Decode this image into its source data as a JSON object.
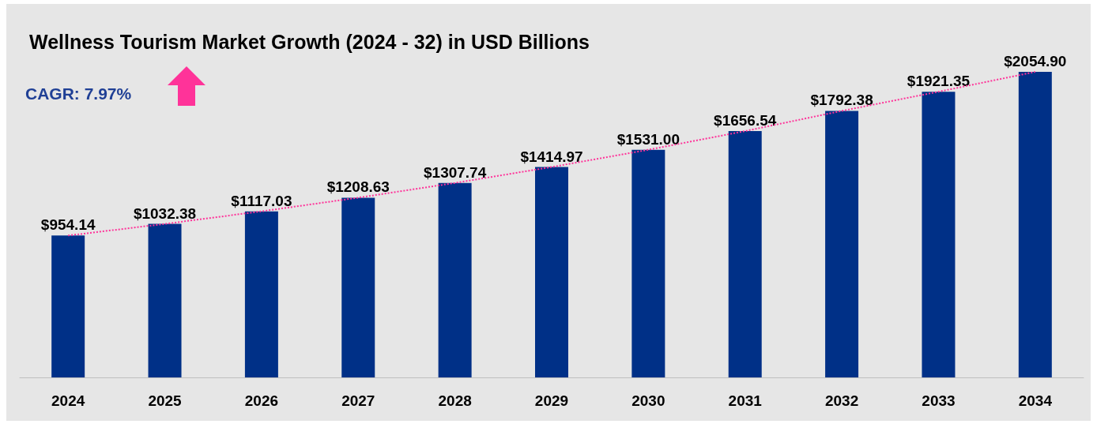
{
  "chart_data": {
    "type": "bar",
    "title": "Wellness Tourism Market Growth (2024 - 32) in USD Billions",
    "annotations": [
      "CAGR: 7.97%"
    ],
    "categories": [
      "2024",
      "2025",
      "2026",
      "2027",
      "2028",
      "2029",
      "2030",
      "2031",
      "2032",
      "2033",
      "2034"
    ],
    "series": [
      {
        "color": "#003087",
        "values": [
          954.14,
          1032.38,
          1117.03,
          1208.63,
          1307.74,
          1414.97,
          1531.0,
          1656.54,
          1792.38,
          1921.35,
          2054.9
        ],
        "value_labels": [
          "$954.14",
          "$1032.38",
          "$1117.03",
          "$1208.63",
          "$1307.74",
          "$1414.97",
          "$1531.00",
          "$1656.54",
          "$1792.38",
          "$1921.35",
          "$2054.90"
        ]
      },
      {
        "type": "line",
        "color": "#ff3399",
        "line_style": "dotted",
        "marker": "none",
        "values": [
          954.14,
          1032.38,
          1117.03,
          1208.63,
          1307.74,
          1414.97,
          1531.0,
          1656.54,
          1792.38,
          1921.35,
          2054.9
        ]
      }
    ],
    "tick_labels": "x"
  }
}
